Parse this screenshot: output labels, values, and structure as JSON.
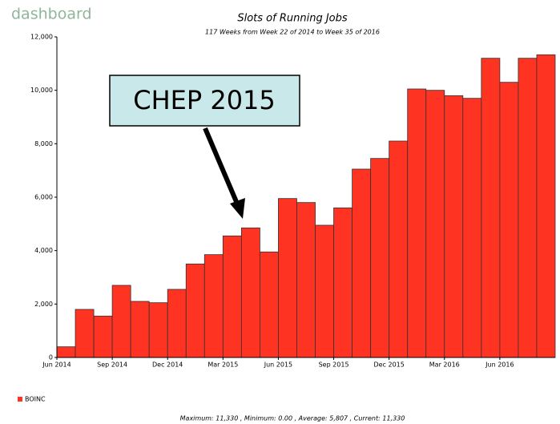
{
  "logo": "dashboard",
  "chart_data": {
    "type": "bar",
    "title": "Slots of Running Jobs",
    "subtitle": "117 Weeks from Week 22 of 2014 to Week 35 of 2016",
    "annotation": "CHEP 2015",
    "categories": [
      "Jun 2014",
      null,
      null,
      "Sep 2014",
      null,
      null,
      "Dec 2014",
      null,
      null,
      "Mar 2015",
      null,
      null,
      "Jun 2015",
      null,
      null,
      "Sep 2015",
      null,
      null,
      "Dec 2015",
      null,
      null,
      "Mar 2016",
      null,
      null,
      "Jun 2016",
      null,
      null
    ],
    "series": [
      {
        "name": "BOINC",
        "color": "#ff3322",
        "values": [
          400,
          1800,
          1550,
          2700,
          2100,
          2050,
          2550,
          3500,
          3850,
          4550,
          4850,
          3950,
          5950,
          5800,
          4950,
          5600,
          7050,
          7450,
          8100,
          10050,
          10000,
          9800,
          9700,
          11200,
          10300,
          11200,
          11330
        ]
      }
    ],
    "ylim": [
      0,
      12000
    ],
    "yticks": [
      0,
      {
        "value": 2000,
        "label": "2,000"
      },
      {
        "value": 4000,
        "label": "4,000"
      },
      {
        "value": 6000,
        "label": "6,000"
      },
      {
        "value": 8000,
        "label": "8,000"
      },
      {
        "value": 10000,
        "label": "10,000"
      },
      {
        "value": 12000,
        "label": "12,000"
      }
    ],
    "footer": "Maximum: 11,330 , Minimum: 0.00 , Average: 5,807 , Current: 11,330"
  }
}
